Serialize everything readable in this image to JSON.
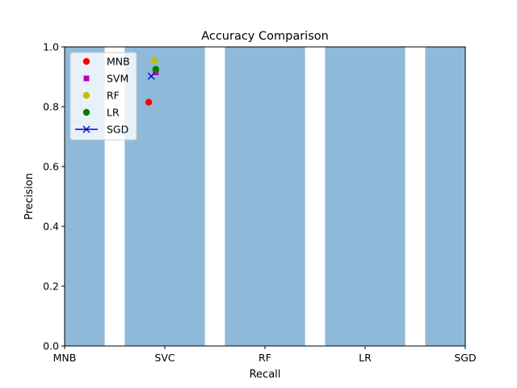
{
  "chart_data": {
    "type": "bar",
    "title": "Accuracy Comparison",
    "xlabel": "Recall",
    "ylabel": "Precision",
    "ylim": [
      0,
      1
    ],
    "grid": false,
    "legend_placement": "top-left",
    "x_tick_labels": [
      "MNB",
      "SVC",
      "RF",
      "LR",
      "SGD"
    ],
    "y_ticks": [
      "0.0",
      "0.2",
      "0.4",
      "0.6",
      "0.8",
      "1.0"
    ],
    "bars": {
      "color": "#8fb9d9",
      "categories": [
        "MNB",
        "SVC",
        "RF",
        "LR",
        "SGD"
      ],
      "values": [
        1.0,
        1.0,
        1.0,
        1.0,
        1.0
      ]
    },
    "series": [
      {
        "name": "MNB",
        "marker": "circle",
        "color": "#ff0000",
        "x": 0.84,
        "y": 0.815
      },
      {
        "name": "SVM",
        "marker": "square",
        "color": "#bf00bf",
        "x": 0.91,
        "y": 0.915
      },
      {
        "name": "RF",
        "marker": "circle",
        "color": "#bfbf00",
        "x": 0.895,
        "y": 0.955
      },
      {
        "name": "LR",
        "marker": "circle",
        "color": "#008000",
        "x": 0.91,
        "y": 0.925
      },
      {
        "name": "SGD",
        "marker": "x-line",
        "color": "#0000cc",
        "x": 0.865,
        "y": 0.902
      }
    ]
  }
}
